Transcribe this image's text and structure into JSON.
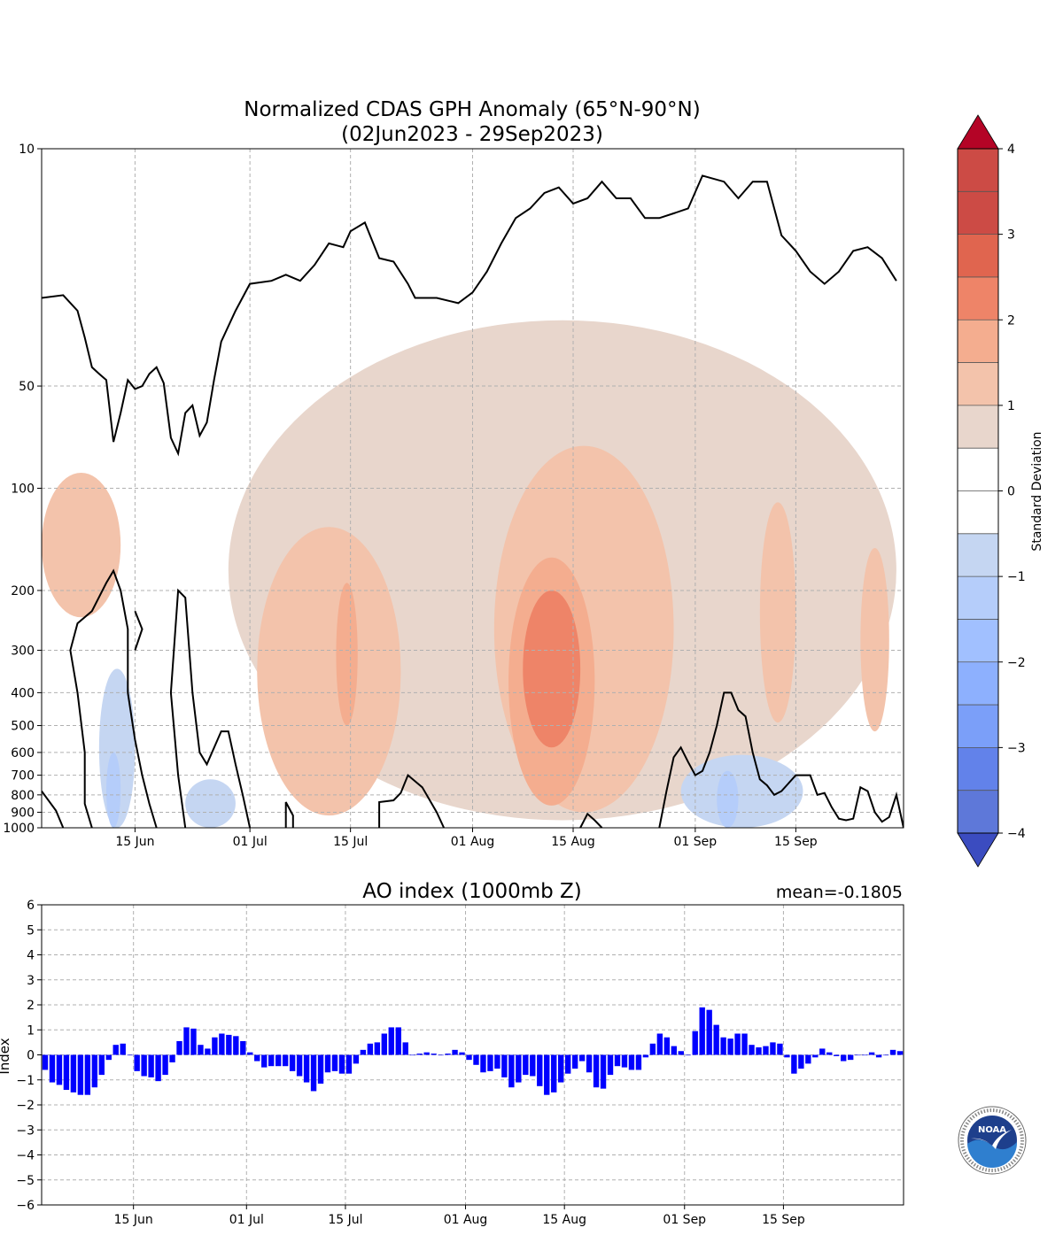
{
  "top_panel": {
    "title_line1": "Normalized CDAS GPH Anomaly (65°N-90°N)",
    "title_line2": "(02Jun2023 - 29Sep2023)",
    "x_ticks": [
      "15 Jun",
      "01 Jul",
      "15 Jul",
      "01 Aug",
      "15 Aug",
      "01 Sep",
      "15 Sep"
    ],
    "y_ticks": [
      "10",
      "50",
      "100",
      "200",
      "300",
      "400",
      "500",
      "600",
      "700",
      "800",
      "900",
      "1000"
    ]
  },
  "colorbar": {
    "label": "Standard Deviation",
    "tick_labels": [
      "4",
      "3",
      "2",
      "1",
      "0",
      "−1",
      "−2",
      "−3",
      "−4"
    ],
    "levels": [
      -4,
      -3.5,
      -3,
      -2.5,
      -2,
      -1.5,
      -1,
      -0.5,
      0.5,
      1,
      1.5,
      2,
      2.5,
      3,
      3.5,
      4
    ],
    "colors": {
      "over": "#b40426",
      "under": "#3b4cc0",
      "positive": [
        "#e8d6cc",
        "#f3c3ab",
        "#f4ad8f",
        "#ee8468",
        "#e0654f",
        "#cc4b45"
      ],
      "negative": [
        "#c5d6f2",
        "#b5cdfa",
        "#a1c0ff",
        "#8db0fe",
        "#7b9ff9",
        "#6282ea",
        "#5e78d9"
      ]
    }
  },
  "bottom_panel": {
    "title": "AO index (1000mb Z)",
    "mean_label": "mean=-0.1805",
    "ylabel": "Index",
    "bar_color": "#0000ff"
  },
  "chart_data": [
    {
      "type": "heatmap",
      "title": "Normalized CDAS GPH Anomaly (65°N-90°N)\n(02Jun2023 - 29Sep2023)",
      "x_range": [
        "2023-06-02",
        "2023-09-29"
      ],
      "y_axis": "pressure (hPa), log scale, inverted",
      "ylim": [
        1000,
        10
      ],
      "colorbar_label": "Standard Deviation",
      "grid": true,
      "contour_fill": [
        {
          "level": 1,
          "date_range": [
            "2023-06-02",
            "2023-06-13"
          ],
          "p_range": [
            90,
            240
          ]
        },
        {
          "level": 0.5,
          "date_range": [
            "2023-06-28",
            "2023-09-29"
          ],
          "p_range": [
            32,
            950
          ]
        },
        {
          "level": 1,
          "date_range": [
            "2023-07-02",
            "2023-07-22"
          ],
          "p_range": [
            130,
            920
          ]
        },
        {
          "level": 1,
          "date_range": [
            "2023-08-04",
            "2023-08-29"
          ],
          "p_range": [
            75,
            900
          ]
        },
        {
          "level": 1.5,
          "date_range": [
            "2023-07-13",
            "2023-07-16"
          ],
          "p_range": [
            190,
            500
          ]
        },
        {
          "level": 1.5,
          "date_range": [
            "2023-08-06",
            "2023-08-18"
          ],
          "p_range": [
            160,
            860
          ]
        },
        {
          "level": 2,
          "date_range": [
            "2023-08-08",
            "2023-08-16"
          ],
          "p_range": [
            200,
            580
          ]
        },
        {
          "level": 1,
          "date_range": [
            "2023-09-10",
            "2023-09-15"
          ],
          "p_range": [
            110,
            490
          ]
        },
        {
          "level": 1,
          "date_range": [
            "2023-09-24",
            "2023-09-28"
          ],
          "p_range": [
            150,
            520
          ]
        },
        {
          "level": -0.5,
          "date_range": [
            "2023-06-10",
            "2023-06-15"
          ],
          "p_range": [
            340,
            1000
          ]
        },
        {
          "level": -1,
          "date_range": [
            "2023-06-11",
            "2023-06-13"
          ],
          "p_range": [
            600,
            1000
          ]
        },
        {
          "level": -0.5,
          "date_range": [
            "2023-06-22",
            "2023-06-29"
          ],
          "p_range": [
            720,
            1000
          ]
        },
        {
          "level": -0.5,
          "date_range": [
            "2023-08-30",
            "2023-09-16"
          ],
          "p_range": [
            610,
            1000
          ]
        },
        {
          "level": -1,
          "date_range": [
            "2023-09-04",
            "2023-09-07"
          ],
          "p_range": [
            680,
            1000
          ]
        }
      ],
      "zero_contour_upper": [
        [
          "2023-06-02",
          27.5
        ],
        [
          "2023-06-05",
          27.0
        ],
        [
          "2023-06-07",
          30
        ],
        [
          "2023-06-08",
          36
        ],
        [
          "2023-06-09",
          44
        ],
        [
          "2023-06-10",
          46
        ],
        [
          "2023-06-11",
          48
        ],
        [
          "2023-06-12",
          73
        ],
        [
          "2023-06-13",
          60
        ],
        [
          "2023-06-14",
          48
        ],
        [
          "2023-06-15",
          51
        ],
        [
          "2023-06-16",
          50
        ],
        [
          "2023-06-17",
          46
        ],
        [
          "2023-06-18",
          44
        ],
        [
          "2023-06-19",
          49
        ],
        [
          "2023-06-20",
          71
        ],
        [
          "2023-06-21",
          79
        ],
        [
          "2023-06-22",
          60
        ],
        [
          "2023-06-23",
          57
        ],
        [
          "2023-06-24",
          70
        ],
        [
          "2023-06-25",
          64
        ],
        [
          "2023-06-26",
          48
        ],
        [
          "2023-06-27",
          37
        ],
        [
          "2023-06-29",
          30
        ],
        [
          "2023-07-01",
          25
        ],
        [
          "2023-07-04",
          24.5
        ],
        [
          "2023-07-06",
          23.5
        ],
        [
          "2023-07-08",
          24.5
        ],
        [
          "2023-07-10",
          22
        ],
        [
          "2023-07-12",
          19
        ],
        [
          "2023-07-14",
          19.5
        ],
        [
          "2023-07-15",
          17.5
        ],
        [
          "2023-07-17",
          16.5
        ],
        [
          "2023-07-19",
          21
        ],
        [
          "2023-07-21",
          21.5
        ],
        [
          "2023-07-23",
          25
        ],
        [
          "2023-07-24",
          27.5
        ],
        [
          "2023-07-27",
          27.5
        ],
        [
          "2023-07-30",
          28.5
        ],
        [
          "2023-08-01",
          26.5
        ],
        [
          "2023-08-03",
          23
        ],
        [
          "2023-08-05",
          19
        ],
        [
          "2023-08-07",
          16
        ],
        [
          "2023-08-09",
          15
        ],
        [
          "2023-08-11",
          13.5
        ],
        [
          "2023-08-13",
          13
        ],
        [
          "2023-08-15",
          14.5
        ],
        [
          "2023-08-17",
          14
        ],
        [
          "2023-08-19",
          12.5
        ],
        [
          "2023-08-21",
          14
        ],
        [
          "2023-08-23",
          14
        ],
        [
          "2023-08-25",
          16
        ],
        [
          "2023-08-27",
          16
        ],
        [
          "2023-08-29",
          15.5
        ],
        [
          "2023-08-31",
          15
        ],
        [
          "2023-09-02",
          12
        ],
        [
          "2023-09-05",
          12.5
        ],
        [
          "2023-09-07",
          14
        ],
        [
          "2023-09-09",
          12.5
        ],
        [
          "2023-09-11",
          12.5
        ],
        [
          "2023-09-13",
          18
        ],
        [
          "2023-09-15",
          20
        ],
        [
          "2023-09-17",
          23
        ],
        [
          "2023-09-19",
          25
        ],
        [
          "2023-09-21",
          23
        ],
        [
          "2023-09-23",
          20
        ],
        [
          "2023-09-25",
          19.5
        ],
        [
          "2023-09-27",
          21
        ],
        [
          "2023-09-29",
          24.5
        ]
      ],
      "zero_contours_lower": [
        [
          [
            "2023-06-02",
            780
          ],
          [
            "2023-06-04",
            890
          ],
          [
            "2023-06-05",
            1000
          ]
        ],
        [
          [
            "2023-06-09",
            1000
          ],
          [
            "2023-06-08",
            850
          ],
          [
            "2023-06-08",
            600
          ],
          [
            "2023-06-07",
            400
          ],
          [
            "2023-06-06",
            300
          ],
          [
            "2023-06-07",
            250
          ],
          [
            "2023-06-09",
            230
          ],
          [
            "2023-06-11",
            190
          ],
          [
            "2023-06-12",
            175
          ],
          [
            "2023-06-13",
            200
          ],
          [
            "2023-06-14",
            260
          ],
          [
            "2023-06-14",
            400
          ],
          [
            "2023-06-15",
            550
          ],
          [
            "2023-06-16",
            700
          ],
          [
            "2023-06-17",
            850
          ],
          [
            "2023-06-18",
            1000
          ]
        ],
        [
          [
            "2023-06-15",
            230
          ],
          [
            "2023-06-16",
            260
          ],
          [
            "2023-06-15",
            300
          ]
        ],
        [
          [
            "2023-06-22",
            1000
          ],
          [
            "2023-06-21",
            700
          ],
          [
            "2023-06-20",
            400
          ],
          [
            "2023-06-21",
            200
          ],
          [
            "2023-06-22",
            210
          ],
          [
            "2023-06-23",
            400
          ],
          [
            "2023-06-24",
            600
          ],
          [
            "2023-06-25",
            650
          ],
          [
            "2023-06-27",
            520
          ],
          [
            "2023-06-28",
            520
          ],
          [
            "2023-06-29",
            650
          ],
          [
            "2023-06-30",
            800
          ],
          [
            "2023-07-01",
            1000
          ]
        ],
        [
          [
            "2023-07-06",
            1000
          ],
          [
            "2023-07-06",
            840
          ],
          [
            "2023-07-07",
            920
          ],
          [
            "2023-07-07",
            1000
          ]
        ],
        [
          [
            "2023-07-19",
            1000
          ],
          [
            "2023-07-19",
            840
          ],
          [
            "2023-07-21",
            830
          ],
          [
            "2023-07-22",
            790
          ],
          [
            "2023-07-23",
            700
          ],
          [
            "2023-07-25",
            760
          ],
          [
            "2023-07-27",
            900
          ],
          [
            "2023-07-28",
            1000
          ]
        ],
        [
          [
            "2023-08-16",
            1000
          ],
          [
            "2023-08-17",
            910
          ],
          [
            "2023-08-18",
            950
          ],
          [
            "2023-08-19",
            1000
          ]
        ],
        [
          [
            "2023-08-27",
            1000
          ],
          [
            "2023-08-28",
            780
          ],
          [
            "2023-08-29",
            620
          ],
          [
            "2023-08-30",
            580
          ],
          [
            "2023-08-31",
            640
          ],
          [
            "2023-09-01",
            700
          ],
          [
            "2023-09-02",
            680
          ],
          [
            "2023-09-03",
            600
          ],
          [
            "2023-09-04",
            500
          ],
          [
            "2023-09-05",
            400
          ],
          [
            "2023-09-06",
            400
          ],
          [
            "2023-09-07",
            450
          ],
          [
            "2023-09-08",
            470
          ],
          [
            "2023-09-09",
            600
          ],
          [
            "2023-09-10",
            720
          ],
          [
            "2023-09-11",
            750
          ],
          [
            "2023-09-12",
            800
          ],
          [
            "2023-09-13",
            780
          ],
          [
            "2023-09-15",
            700
          ],
          [
            "2023-09-17",
            700
          ],
          [
            "2023-09-18",
            800
          ],
          [
            "2023-09-19",
            790
          ],
          [
            "2023-09-20",
            870
          ],
          [
            "2023-09-21",
            940
          ],
          [
            "2023-09-22",
            950
          ],
          [
            "2023-09-23",
            940
          ],
          [
            "2023-09-24",
            760
          ],
          [
            "2023-09-25",
            780
          ],
          [
            "2023-09-26",
            900
          ],
          [
            "2023-09-27",
            960
          ],
          [
            "2023-09-28",
            930
          ],
          [
            "2023-09-29",
            800
          ],
          [
            "2023-09-30",
            1000
          ]
        ]
      ]
    },
    {
      "type": "bar",
      "title": "AO index (1000mb Z)",
      "ylabel": "Index",
      "ylim": [
        -6,
        6
      ],
      "mean": -0.1805,
      "x_start": "2023-06-02",
      "x_end": "2023-09-29",
      "values": [
        -0.6,
        -1.1,
        -1.2,
        -1.4,
        -1.5,
        -1.6,
        -1.6,
        -1.3,
        -0.8,
        -0.2,
        0.4,
        0.45,
        0.0,
        -0.65,
        -0.85,
        -0.9,
        -1.05,
        -0.8,
        -0.3,
        0.55,
        1.1,
        1.05,
        0.4,
        0.25,
        0.7,
        0.85,
        0.8,
        0.75,
        0.55,
        0.1,
        -0.25,
        -0.5,
        -0.45,
        -0.45,
        -0.45,
        -0.65,
        -0.85,
        -1.1,
        -1.45,
        -1.15,
        -0.7,
        -0.65,
        -0.75,
        -0.75,
        -0.35,
        0.2,
        0.45,
        0.5,
        0.85,
        1.1,
        1.1,
        0.5,
        0.0,
        0.05,
        0.1,
        0.05,
        0.0,
        0.05,
        0.2,
        0.1,
        -0.2,
        -0.4,
        -0.7,
        -0.65,
        -0.55,
        -0.9,
        -1.3,
        -1.1,
        -0.8,
        -0.85,
        -1.25,
        -1.6,
        -1.5,
        -1.1,
        -0.75,
        -0.55,
        -0.25,
        -0.7,
        -1.3,
        -1.35,
        -0.8,
        -0.45,
        -0.5,
        -0.6,
        -0.6,
        -0.1,
        0.45,
        0.85,
        0.7,
        0.35,
        0.15,
        0.0,
        0.95,
        1.9,
        1.8,
        1.2,
        0.7,
        0.65,
        0.85,
        0.85,
        0.4,
        0.3,
        0.35,
        0.5,
        0.45,
        -0.1,
        -0.75,
        -0.55,
        -0.35,
        -0.1,
        0.25,
        0.1,
        -0.05,
        -0.25,
        -0.2,
        0.0,
        0.0,
        0.1,
        -0.1,
        0.0,
        0.2,
        0.15
      ]
    }
  ]
}
